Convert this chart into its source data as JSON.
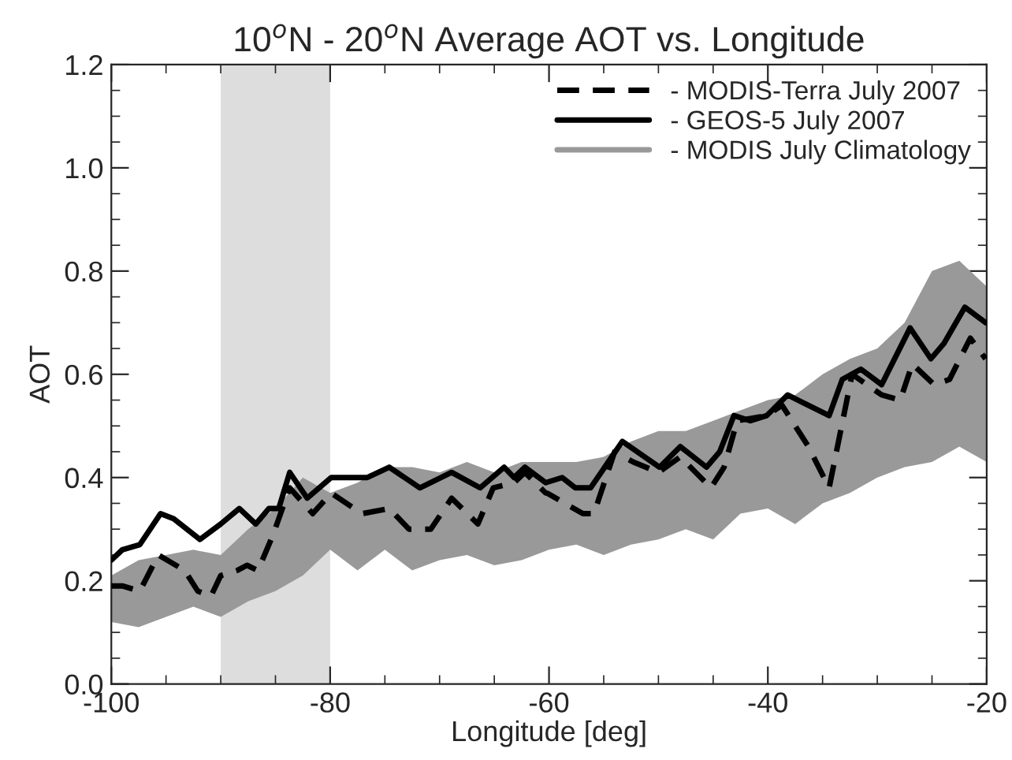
{
  "chart_data": {
    "type": "line",
    "title": "10$^{o}$N - 20$^{o}$N Average AOT vs. Longitude",
    "xlabel": "Longitude [deg]",
    "ylabel": "AOT",
    "xlim": [
      -100,
      -20
    ],
    "ylim": [
      0,
      1.2
    ],
    "xticks": [
      -100,
      -80,
      -60,
      -40,
      -20
    ],
    "yticks": [
      {
        "value": 0,
        "label": "0.0"
      },
      {
        "value": 0.2,
        "label": "0.2"
      },
      {
        "value": 0.4,
        "label": "0.4"
      },
      {
        "value": 0.6,
        "label": "0.6"
      },
      {
        "value": 0.8,
        "label": "0.8"
      },
      {
        "value": 1.0,
        "label": "1.0"
      },
      {
        "value": 1.2,
        "label": "1.2"
      }
    ],
    "grid": false,
    "legend": "top right",
    "bands": [
      {
        "axis": "x",
        "from": -90,
        "to": -80,
        "color": "#dddddd"
      }
    ],
    "series": [
      {
        "name": "- MODIS July Climatology",
        "type": "area",
        "color": "#999999",
        "x": [
          -100,
          -97.5,
          -95,
          -92.5,
          -90,
          -87.5,
          -85,
          -82.5,
          -80,
          -77.5,
          -75,
          -72.5,
          -70,
          -67.5,
          -65,
          -62.5,
          -60,
          -57.5,
          -55,
          -52.5,
          -50,
          -47.5,
          -45,
          -42.5,
          -40,
          -37.5,
          -35,
          -32.5,
          -30,
          -27.5,
          -25,
          -22.5,
          -20
        ],
        "lower": [
          0.12,
          0.11,
          0.13,
          0.15,
          0.13,
          0.16,
          0.18,
          0.21,
          0.26,
          0.22,
          0.26,
          0.22,
          0.24,
          0.25,
          0.23,
          0.24,
          0.26,
          0.27,
          0.25,
          0.27,
          0.28,
          0.3,
          0.28,
          0.33,
          0.34,
          0.31,
          0.35,
          0.37,
          0.4,
          0.42,
          0.43,
          0.46,
          0.43
        ],
        "values": [
          null,
          null,
          null,
          null,
          null,
          null,
          null,
          null,
          null,
          null,
          null,
          null,
          null,
          null,
          null,
          null,
          null,
          null,
          null,
          null,
          null,
          null,
          null,
          null,
          null,
          null,
          null,
          null,
          null,
          null,
          null,
          null,
          null
        ],
        "upper": [
          0.21,
          0.24,
          0.25,
          0.26,
          0.25,
          0.3,
          0.34,
          0.4,
          0.37,
          0.39,
          0.42,
          0.42,
          0.41,
          0.43,
          0.41,
          0.43,
          0.43,
          0.43,
          0.44,
          0.47,
          0.49,
          0.49,
          0.51,
          0.53,
          0.55,
          0.56,
          0.6,
          0.63,
          0.65,
          0.7,
          0.8,
          0.82,
          0.77
        ]
      },
      {
        "name": "- MODIS-Terra July 2007",
        "color": "#000000",
        "line_style": "dashed",
        "x": [
          -100,
          -99,
          -97.4,
          -95.7,
          -93.3,
          -92.1,
          -90.9,
          -90,
          -88.5,
          -87.6,
          -86.6,
          -85.2,
          -83.7,
          -81.6,
          -79.9,
          -77.1,
          -74.6,
          -72.8,
          -70.8,
          -68.9,
          -66.5,
          -65.1,
          -63.2,
          -62.2,
          -60.3,
          -60.2,
          -56.9,
          -55.9,
          -54,
          -52.3,
          -50,
          -48,
          -45.2,
          -44,
          -42.8,
          -40.1,
          -38.7,
          -36.3,
          -34.4,
          -32.3,
          -29.6,
          -27.9,
          -26.8,
          -24.8,
          -23.4,
          -21.5,
          -20.1
        ],
        "values": [
          0.19,
          0.19,
          0.18,
          0.25,
          0.22,
          0.18,
          0.17,
          0.21,
          0.22,
          0.23,
          0.22,
          0.29,
          0.38,
          0.33,
          0.37,
          0.33,
          0.34,
          0.3,
          0.3,
          0.36,
          0.31,
          0.38,
          0.39,
          0.41,
          0.37,
          0.37,
          0.33,
          0.33,
          0.45,
          0.43,
          0.41,
          0.44,
          0.38,
          0.42,
          0.51,
          0.52,
          0.54,
          0.46,
          0.38,
          0.6,
          0.56,
          0.55,
          0.62,
          0.58,
          0.59,
          0.67,
          0.63
        ]
      },
      {
        "name": "- GEOS-5 July 2007",
        "color": "#000000",
        "line_style": "solid",
        "x": [
          -100,
          -99,
          -97.4,
          -95.5,
          -94.3,
          -91.9,
          -90,
          -88.3,
          -86.8,
          -85.6,
          -84.7,
          -83.7,
          -82.1,
          -79.9,
          -76.6,
          -74.6,
          -71.8,
          -68.9,
          -66.3,
          -64.1,
          -63.2,
          -62.2,
          -60.3,
          -58.8,
          -57.6,
          -56.2,
          -53.3,
          -49.9,
          -48,
          -45.6,
          -44.4,
          -43.1,
          -41.6,
          -40.1,
          -38.2,
          -34.4,
          -33.2,
          -31.5,
          -29.6,
          -27,
          -25.1,
          -23.9,
          -22,
          -20.1
        ],
        "values": [
          0.24,
          0.26,
          0.27,
          0.33,
          0.32,
          0.28,
          0.31,
          0.34,
          0.31,
          0.34,
          0.34,
          0.41,
          0.36,
          0.4,
          0.4,
          0.42,
          0.38,
          0.41,
          0.38,
          0.42,
          0.4,
          0.42,
          0.39,
          0.4,
          0.38,
          0.38,
          0.47,
          0.42,
          0.46,
          0.42,
          0.45,
          0.52,
          0.51,
          0.52,
          0.56,
          0.52,
          0.59,
          0.61,
          0.58,
          0.69,
          0.63,
          0.66,
          0.73,
          0.7
        ]
      }
    ]
  }
}
